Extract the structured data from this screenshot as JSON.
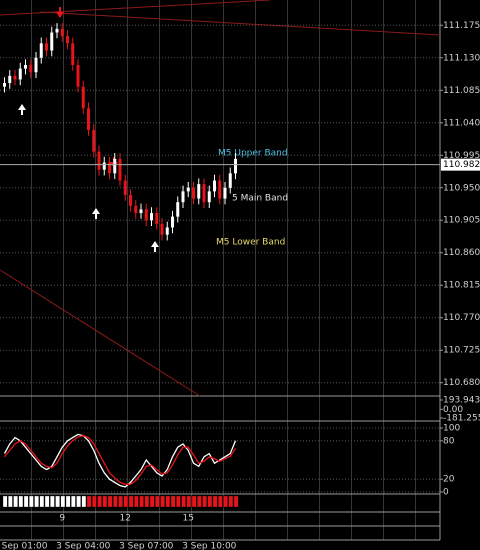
{
  "chart_data": [
    {
      "type": "candlestick",
      "categories": [
        null,
        null,
        null,
        "3 Sep 01:00",
        null,
        null,
        null,
        null,
        null,
        null,
        null,
        null,
        null,
        null,
        null,
        "3 Sep 04:00",
        null,
        null,
        null,
        null,
        null,
        null,
        null,
        null,
        null,
        null,
        null,
        "3 Sep 07:00",
        null,
        null,
        null,
        null,
        null,
        null,
        null,
        null,
        null,
        null,
        null,
        "3 Sep 10:00",
        null,
        null,
        null,
        null,
        null
      ],
      "open": [
        111.09,
        111.095,
        111.105,
        111.1,
        111.115,
        111.12,
        111.11,
        111.13,
        111.15,
        111.14,
        111.165,
        111.17,
        111.16,
        111.15,
        111.12,
        111.09,
        111.06,
        111.03,
        111.0,
        110.975,
        110.985,
        110.97,
        110.99,
        110.96,
        110.94,
        110.925,
        110.915,
        110.92,
        110.905,
        110.915,
        110.9,
        110.885,
        110.895,
        110.91,
        110.93,
        110.945,
        110.95,
        110.935,
        110.955,
        110.93,
        110.945,
        110.96,
        110.935,
        110.95,
        110.97
      ],
      "high": [
        111.103,
        111.113,
        111.113,
        111.123,
        111.128,
        111.128,
        111.138,
        111.158,
        111.158,
        111.173,
        111.178,
        111.178,
        111.168,
        111.158,
        111.128,
        111.098,
        111.068,
        111.038,
        111.008,
        110.993,
        110.993,
        110.998,
        110.998,
        110.968,
        110.948,
        110.933,
        110.928,
        110.928,
        110.923,
        110.923,
        110.908,
        110.903,
        110.918,
        110.938,
        110.953,
        110.958,
        110.958,
        110.963,
        110.963,
        110.953,
        110.968,
        110.968,
        110.958,
        110.978,
        110.998
      ],
      "low": [
        111.082,
        111.087,
        111.092,
        111.092,
        111.107,
        111.102,
        111.102,
        111.122,
        111.132,
        111.132,
        111.157,
        111.152,
        111.142,
        111.112,
        111.082,
        111.052,
        111.022,
        110.992,
        110.967,
        110.967,
        110.962,
        110.962,
        110.952,
        110.932,
        110.917,
        110.907,
        110.907,
        110.897,
        110.897,
        110.892,
        110.877,
        110.877,
        110.887,
        110.902,
        110.922,
        110.937,
        110.927,
        110.927,
        110.922,
        110.922,
        110.937,
        110.927,
        110.927,
        110.942,
        110.962
      ],
      "close": [
        111.095,
        111.105,
        111.1,
        111.115,
        111.12,
        111.11,
        111.13,
        111.15,
        111.14,
        111.165,
        111.17,
        111.16,
        111.15,
        111.12,
        111.09,
        111.06,
        111.03,
        111.0,
        110.975,
        110.985,
        110.97,
        110.99,
        110.96,
        110.94,
        110.925,
        110.915,
        110.92,
        110.905,
        110.915,
        110.9,
        110.885,
        110.895,
        110.91,
        110.93,
        110.945,
        110.95,
        110.935,
        110.955,
        110.93,
        110.945,
        110.96,
        110.935,
        110.95,
        110.97,
        110.99
      ],
      "up_color": "#ffffff",
      "down_color": "#e8141b",
      "ylim": [
        110.663,
        111.21
      ],
      "yticks": [
        111.175,
        {
          "value": 111.13,
          "label": "111.130"
        },
        111.085,
        {
          "value": 111.04,
          "label": "111.040"
        },
        110.995,
        {
          "value": 110.95,
          "label": "110.950"
        },
        110.905,
        {
          "value": 110.86,
          "label": "110.860"
        },
        110.815,
        {
          "value": 110.77,
          "label": "110.770"
        },
        110.725,
        {
          "value": 110.68,
          "label": "110.680"
        }
      ],
      "last_price": 110.982,
      "annotations": [
        "M5 Upper Band",
        "5 Main Band",
        "M5 Lower Band"
      ],
      "grid": true
    },
    {
      "type": "indicator",
      "ylim": [
        -181.255,
        193.9431
      ],
      "yticks": [
        193.9431,
        {
          "value": 0,
          "label": "0.00"
        },
        -181.255
      ]
    },
    {
      "type": "line",
      "series": [
        {
          "color": "#ffffff",
          "values": [
            60,
            75,
            85,
            80,
            70,
            60,
            50,
            40,
            35,
            40,
            55,
            70,
            80,
            85,
            90,
            88,
            80,
            65,
            45,
            30,
            20,
            15,
            10,
            8,
            15,
            25,
            35,
            50,
            40,
            30,
            25,
            35,
            55,
            70,
            75,
            65,
            45,
            40,
            55,
            60,
            45,
            50,
            55,
            60,
            80
          ]
        },
        {
          "color": "#e8141b",
          "values": [
            55,
            65,
            75,
            80,
            75,
            65,
            55,
            45,
            40,
            38,
            45,
            60,
            72,
            80,
            86,
            88,
            85,
            75,
            60,
            45,
            30,
            22,
            15,
            12,
            12,
            18,
            28,
            40,
            42,
            35,
            28,
            30,
            42,
            58,
            70,
            70,
            58,
            45,
            48,
            55,
            52,
            48,
            52,
            56,
            68
          ]
        }
      ],
      "ylim": [
        0,
        100
      ],
      "yticks": [
        100,
        80,
        20,
        0
      ],
      "grid": true
    },
    {
      "type": "signal",
      "categories": [
        null,
        null,
        null,
        null,
        null,
        null,
        null,
        null,
        null,
        null,
        null,
        "9",
        null,
        null,
        null,
        null,
        null,
        null,
        null,
        null,
        null,
        null,
        null,
        "12",
        null,
        null,
        null,
        null,
        null,
        null,
        null,
        null,
        null,
        null,
        null,
        "15",
        null,
        null,
        null,
        null,
        null,
        null,
        null,
        null,
        null
      ],
      "values": [
        1,
        1,
        1,
        1,
        1,
        1,
        1,
        1,
        1,
        1,
        1,
        1,
        1,
        1,
        1,
        1,
        1,
        1,
        1,
        1,
        1,
        1,
        1,
        1,
        1,
        1,
        1,
        1,
        1,
        1,
        1,
        1,
        1,
        1,
        1,
        1,
        1,
        1,
        1,
        1,
        1,
        1,
        1,
        1,
        1
      ],
      "colors": [
        "#ffffff",
        "#ffffff",
        "#ffffff",
        "#ffffff",
        "#ffffff",
        "#ffffff",
        "#ffffff",
        "#ffffff",
        "#ffffff",
        "#ffffff",
        "#ffffff",
        "#ffffff",
        "#ffffff",
        "#ffffff",
        "#ffffff",
        "#ffffff",
        "#e8141b",
        "#e8141b",
        "#e8141b",
        "#e8141b",
        "#e8141b",
        "#e8141b",
        "#e8141b",
        "#e8141b",
        "#e8141b",
        "#e8141b",
        "#e8141b",
        "#e8141b",
        "#e8141b",
        "#e8141b",
        "#e8141b",
        "#e8141b",
        "#e8141b",
        "#e8141b",
        "#e8141b",
        "#e8141b",
        "#e8141b",
        "#e8141b",
        "#e8141b",
        "#e8141b",
        "#e8141b",
        "#e8141b",
        "#e8141b",
        "#e8141b",
        "#e8141b"
      ],
      "ylim": [
        0,
        1
      ]
    }
  ]
}
